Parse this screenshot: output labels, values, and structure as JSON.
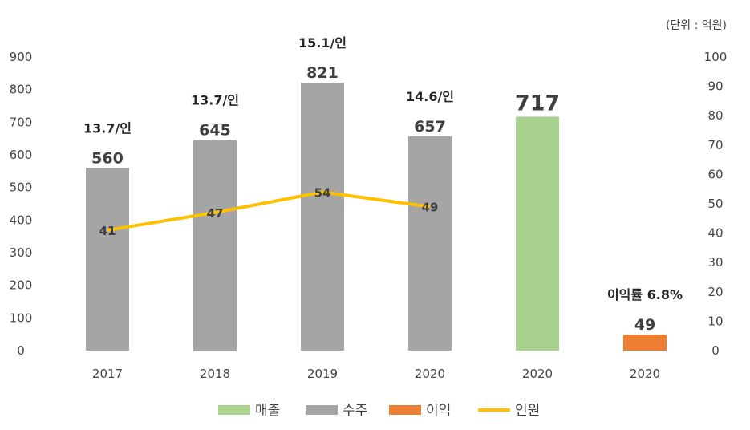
{
  "chart_data": {
    "type": "bar",
    "unit_note": "(단위 : 억원)",
    "categories": [
      "2017",
      "2018",
      "2019",
      "2020",
      "2020",
      "2020"
    ],
    "ylim": [
      0,
      900
    ],
    "y_ticks": [
      "0",
      "100",
      "200",
      "300",
      "400",
      "500",
      "600",
      "700",
      "800",
      "900"
    ],
    "y2lim": [
      0,
      100
    ],
    "y2_ticks": [
      "0",
      "10",
      "20",
      "30",
      "40",
      "50",
      "60",
      "70",
      "80",
      "90",
      "100"
    ],
    "series": [
      {
        "name": "매출",
        "type": "bar",
        "color": "#A9D18E",
        "values": [
          null,
          null,
          null,
          null,
          717,
          null
        ],
        "labels": [
          null,
          null,
          null,
          null,
          "717",
          null
        ]
      },
      {
        "name": "수주",
        "type": "bar",
        "color": "#A5A5A5",
        "values": [
          560,
          645,
          821,
          657,
          null,
          null
        ],
        "labels": [
          "560",
          "645",
          "821",
          "657",
          null,
          null
        ]
      },
      {
        "name": "이익",
        "type": "bar",
        "color": "#ED7D31",
        "values": [
          null,
          null,
          null,
          null,
          null,
          49
        ],
        "labels": [
          null,
          null,
          null,
          null,
          null,
          "49"
        ]
      },
      {
        "name": "인원",
        "type": "line",
        "axis": "right",
        "color": "#FFC000",
        "values": [
          41,
          47,
          54,
          49,
          null,
          null
        ],
        "labels": [
          "41",
          "47",
          "54",
          "49",
          null,
          null
        ]
      }
    ],
    "annotations": [
      "13.7/인",
      "13.7/인",
      "15.1/인",
      "14.6/인",
      null,
      "이익률 6.8%"
    ],
    "legend_position": "bottom",
    "grid": false
  }
}
